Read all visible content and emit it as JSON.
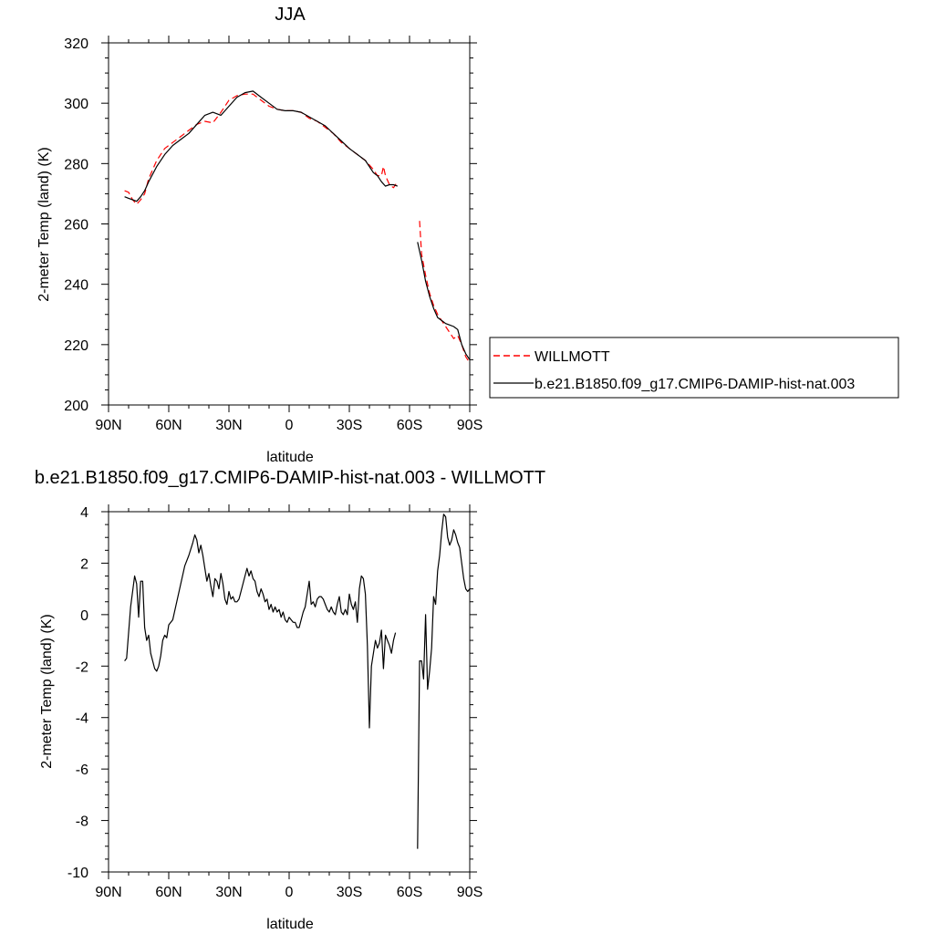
{
  "chart_data": [
    {
      "type": "line",
      "title": "JJA",
      "xlabel": "latitude",
      "ylabel": "2-meter Temp (land) (K)",
      "xlim": [
        90,
        -90
      ],
      "ylim": [
        200,
        320
      ],
      "x_ticks": [
        90,
        60,
        30,
        0,
        -30,
        -60,
        -90
      ],
      "x_tick_labels": [
        "90N",
        "60N",
        "30N",
        "0",
        "30S",
        "60S",
        "90S"
      ],
      "y_ticks": [
        200,
        220,
        240,
        260,
        280,
        300,
        320
      ],
      "y_tick_labels": [
        "200",
        "220",
        "240",
        "260",
        "280",
        "300",
        "320"
      ],
      "legend_position": "right",
      "series": [
        {
          "name": "WILLMOTT",
          "style": "dashed",
          "color": "#ff0000",
          "segments": [
            {
              "x": [
                82,
                80,
                78,
                76,
                74,
                72,
                70,
                66,
                62,
                58,
                54,
                50,
                46,
                42,
                38,
                34,
                30,
                26,
                22,
                18,
                14,
                10,
                6,
                2,
                -2,
                -6,
                -10,
                -14,
                -18,
                -22,
                -26,
                -30,
                -34,
                -38,
                -42,
                -44,
                -46,
                -47,
                -48,
                -50,
                -52,
                -54
              ],
              "y": [
                271,
                270.5,
                268,
                266.5,
                268,
                270,
                275,
                281,
                285,
                287,
                289,
                291,
                293,
                294,
                293.5,
                297,
                301,
                302.5,
                303,
                303,
                301,
                299,
                298,
                297.5,
                297.5,
                297,
                295,
                294,
                292,
                290,
                287,
                285,
                283,
                281,
                278,
                276,
                276,
                279,
                276,
                273,
                272,
                274
              ]
            },
            {
              "x": [
                -65,
                -66,
                -68,
                -70,
                -72,
                -74,
                -76,
                -78,
                -80,
                -82,
                -84,
                -86,
                -88,
                -90
              ],
              "y": [
                261,
                250,
                243,
                237,
                233,
                230,
                228,
                226,
                224,
                222,
                223,
                220,
                216,
                214
              ]
            }
          ]
        },
        {
          "name": "b.e21.B1850.f09_g17.CMIP6-DAMIP-hist-nat.003",
          "style": "solid",
          "color": "#000000",
          "segments": [
            {
              "x": [
                82,
                80,
                78,
                76,
                74,
                72,
                70,
                66,
                62,
                58,
                54,
                50,
                46,
                42,
                38,
                34,
                30,
                26,
                22,
                18,
                14,
                10,
                6,
                2,
                -2,
                -6,
                -10,
                -14,
                -18,
                -22,
                -26,
                -30,
                -34,
                -38,
                -42,
                -44,
                -46,
                -48,
                -50,
                -52,
                -54
              ],
              "y": [
                269,
                268.5,
                268,
                267.5,
                269,
                271,
                274,
                279,
                283,
                286,
                288,
                290,
                293,
                296,
                297,
                296,
                299,
                302,
                303.5,
                304,
                302,
                300,
                298,
                297.5,
                297.5,
                297,
                295.5,
                294,
                292.5,
                290,
                287.5,
                285,
                283,
                281,
                277,
                276,
                274,
                272.5,
                273,
                273,
                272.5
              ]
            },
            {
              "x": [
                -64,
                -66,
                -68,
                -70,
                -72,
                -74,
                -76,
                -78,
                -80,
                -82,
                -84,
                -86,
                -88,
                -90
              ],
              "y": [
                254,
                248,
                241,
                236,
                232,
                229,
                228,
                227,
                226.5,
                226,
                225,
                220,
                217,
                215
              ]
            }
          ]
        }
      ]
    },
    {
      "type": "line",
      "title": "b.e21.B1850.f09_g17.CMIP6-DAMIP-hist-nat.003 - WILLMOTT",
      "xlabel": "latitude",
      "ylabel": "2-meter Temp (land) (K)",
      "xlim": [
        90,
        -90
      ],
      "ylim": [
        -10,
        4
      ],
      "x_ticks": [
        90,
        60,
        30,
        0,
        -30,
        -60,
        -90
      ],
      "x_tick_labels": [
        "90N",
        "60N",
        "30N",
        "0",
        "30S",
        "60S",
        "90S"
      ],
      "y_ticks": [
        -10,
        -8,
        -6,
        -4,
        -2,
        0,
        2,
        4
      ],
      "y_tick_labels": [
        "-10",
        "-8",
        "-6",
        "-4",
        "-2",
        "0",
        "2",
        "4"
      ],
      "series": [
        {
          "style": "solid",
          "color": "#000000",
          "segments": [
            {
              "x": [
                82,
                81,
                79,
                77,
                76,
                75,
                74,
                73,
                72,
                71,
                70,
                69,
                67,
                66,
                65,
                64,
                63,
                62,
                61,
                60,
                58,
                56,
                54,
                52,
                50,
                48,
                47,
                46,
                45,
                44,
                43,
                42,
                41,
                40,
                39,
                38,
                37,
                36,
                35,
                34,
                33,
                32,
                31,
                30,
                29,
                28,
                27,
                26,
                25,
                24,
                23,
                22,
                21,
                20,
                19,
                18,
                17,
                16,
                15,
                14,
                13,
                12,
                11,
                10,
                9,
                8,
                7,
                6,
                5,
                4,
                3,
                2,
                1,
                0,
                -1,
                -2,
                -3,
                -4,
                -5,
                -6,
                -7,
                -8,
                -9,
                -10,
                -11,
                -12,
                -13,
                -14,
                -15,
                -16,
                -17,
                -18,
                -19,
                -20,
                -21,
                -22,
                -23,
                -24,
                -25,
                -26,
                -27,
                -28,
                -29,
                -30,
                -31,
                -32,
                -33,
                -34,
                -35,
                -36,
                -37,
                -38,
                -39,
                -40,
                -41,
                -42,
                -43,
                -44,
                -45,
                -46,
                -47,
                -48,
                -49,
                -50,
                -51,
                -52,
                -53
              ],
              "y": [
                -1.8,
                -1.7,
                0.3,
                1.5,
                1.2,
                -0.1,
                1.3,
                1.3,
                -0.5,
                -1.0,
                -0.8,
                -1.5,
                -2.1,
                -2.2,
                -2.0,
                -1.6,
                -1.0,
                -0.8,
                -0.9,
                -0.4,
                -0.2,
                0.5,
                1.2,
                1.9,
                2.3,
                2.8,
                3.1,
                2.9,
                2.4,
                2.7,
                2.3,
                1.8,
                1.3,
                1.6,
                1.1,
                0.7,
                1.4,
                1.3,
                1.0,
                1.6,
                1.2,
                0.6,
                0.4,
                0.9,
                0.6,
                0.7,
                0.5,
                0.5,
                0.6,
                0.9,
                1.2,
                1.5,
                1.8,
                1.5,
                1.7,
                1.4,
                1.3,
                0.9,
                0.7,
                1.0,
                0.8,
                0.5,
                0.6,
                0.2,
                0.4,
                0.1,
                0.3,
                0.1,
                0.2,
                -0.1,
                0.1,
                -0.2,
                -0.3,
                -0.1,
                -0.2,
                -0.3,
                -0.3,
                -0.5,
                -0.5,
                -0.2,
                0.1,
                0.3,
                0.8,
                1.3,
                0.4,
                0.5,
                0.3,
                0.6,
                0.7,
                0.7,
                0.6,
                0.4,
                0.2,
                0.1,
                0.3,
                0.1,
                0.0,
                0.4,
                0.7,
                0.1,
                0.0,
                0.2,
                0.0,
                0.8,
                0.4,
                0.2,
                0.5,
                -0.3,
                1.0,
                1.5,
                1.4,
                0.8,
                -1.2,
                -4.4,
                -2.0,
                -1.5,
                -1.0,
                -1.3,
                -1.1,
                -0.6,
                -2.1,
                -0.8,
                -1.0,
                -1.2,
                -1.5,
                -1.0,
                -0.7
              ]
            },
            {
              "x": [
                -64,
                -65,
                -66,
                -67,
                -68,
                -69,
                -70,
                -71,
                -72,
                -73,
                -74,
                -75,
                -76,
                -77,
                -78,
                -79,
                -80,
                -81,
                -82,
                -83,
                -84,
                -85,
                -86,
                -87,
                -88,
                -89,
                -90
              ],
              "y": [
                -9.1,
                -1.8,
                -1.8,
                -2.5,
                0.0,
                -2.9,
                -2.2,
                -1.3,
                0.7,
                0.4,
                1.7,
                2.3,
                3.2,
                3.9,
                3.8,
                3.0,
                2.7,
                2.9,
                3.3,
                3.1,
                2.8,
                2.6,
                2.0,
                1.4,
                1.0,
                0.9,
                1.0
              ]
            }
          ]
        }
      ]
    }
  ]
}
